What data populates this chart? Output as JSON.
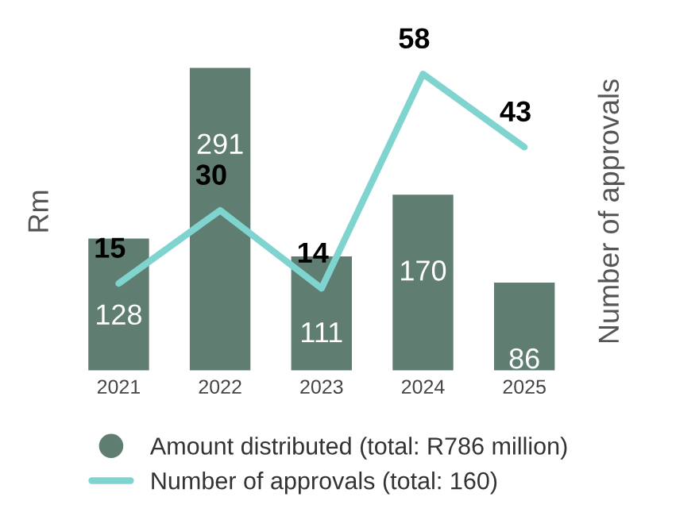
{
  "chart_data": {
    "type": "bar",
    "ylabel": "Rm",
    "y2label": "Number of approvals",
    "categories": [
      "2021",
      "2022",
      "2023",
      "2024",
      "2025"
    ],
    "series": [
      {
        "name": "Amount distributed (total: R786 million)",
        "color": "#5f7e71",
        "values": [
          128,
          291,
          111,
          170,
          86
        ]
      },
      {
        "name": "Number of approvals (total: 160)",
        "type": "line",
        "axis": "y2",
        "color": "#7fd4cf",
        "values": [
          15,
          30,
          14,
          58,
          43
        ]
      }
    ],
    "data_labels": true,
    "tick_labels": "x",
    "legend": "bottom",
    "grid": false
  }
}
